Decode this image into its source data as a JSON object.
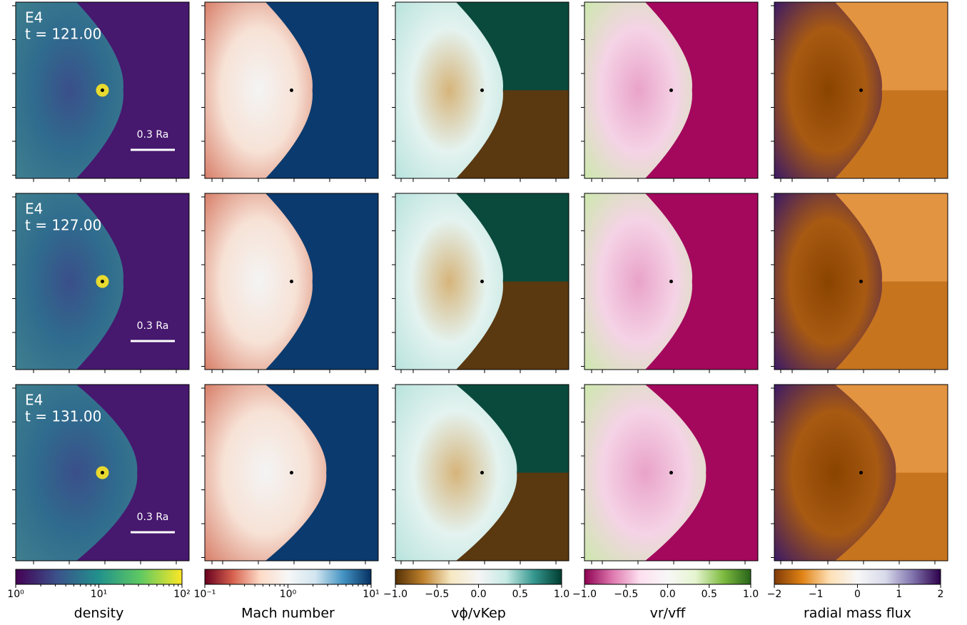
{
  "figure": {
    "rows": [
      {
        "run": "E4",
        "time": "t = 121.00",
        "scale_bar": "0.3 Ra"
      },
      {
        "run": "E4",
        "time": "t = 127.00",
        "scale_bar": "0.3 Ra"
      },
      {
        "run": "E4",
        "time": "t = 131.00",
        "scale_bar": "0.3 Ra"
      }
    ],
    "colorbars": [
      {
        "label": "density",
        "log": true,
        "lim": [
          1,
          100
        ],
        "ticks": [
          {
            "value": 1,
            "label": "10⁰"
          },
          {
            "value": 10,
            "label": "10¹"
          },
          {
            "value": 100,
            "label": "10²"
          }
        ],
        "colors": [
          "#440154",
          "#3b528b",
          "#21918c",
          "#5ec962",
          "#fde725"
        ]
      },
      {
        "label": "Mach number",
        "log": true,
        "lim": [
          0.1,
          10
        ],
        "ticks": [
          {
            "value": 0.1,
            "label": "10⁻¹"
          },
          {
            "value": 1,
            "label": "10⁰"
          },
          {
            "value": 10,
            "label": "10¹"
          }
        ],
        "colors": [
          "#67001f",
          "#d6604d",
          "#fddbc7",
          "#f7f7f7",
          "#d1e5f0",
          "#4393c3",
          "#053061"
        ]
      },
      {
        "label": "vϕ/vKep",
        "log": false,
        "lim": [
          -1,
          1
        ],
        "ticks": [
          {
            "value": -1,
            "label": "−1.0"
          },
          {
            "value": -0.5,
            "label": "−0.5"
          },
          {
            "value": 0,
            "label": "0.0"
          },
          0.5,
          {
            "value": 1,
            "label": "1.0"
          }
        ],
        "colors": [
          "#543005",
          "#bf812d",
          "#f6e8c3",
          "#f5f5f5",
          "#c7eae5",
          "#35978f",
          "#003c30"
        ]
      },
      {
        "label": "vr/vff",
        "log": false,
        "lim": [
          -1,
          1
        ],
        "ticks": [
          {
            "value": -1,
            "label": "−1.0"
          },
          {
            "value": -0.5,
            "label": "−0.5"
          },
          {
            "value": 0,
            "label": "0.0"
          },
          0.5,
          {
            "value": 1,
            "label": "1.0"
          }
        ],
        "colors": [
          "#8e0152",
          "#de77ae",
          "#fde0ef",
          "#f7f7f7",
          "#e6f5d0",
          "#7fbc41",
          "#276419"
        ]
      },
      {
        "label": "radial mass flux",
        "log": false,
        "lim": [
          -2,
          2
        ],
        "ticks": [
          {
            "value": -2,
            "label": "−2"
          },
          {
            "value": -1,
            "label": "−1"
          },
          0,
          1,
          2
        ],
        "colors": [
          "#7f3b08",
          "#e08214",
          "#fee0b6",
          "#f7f7f7",
          "#d8daeb",
          "#8073ac",
          "#2d004b"
        ]
      }
    ]
  }
}
